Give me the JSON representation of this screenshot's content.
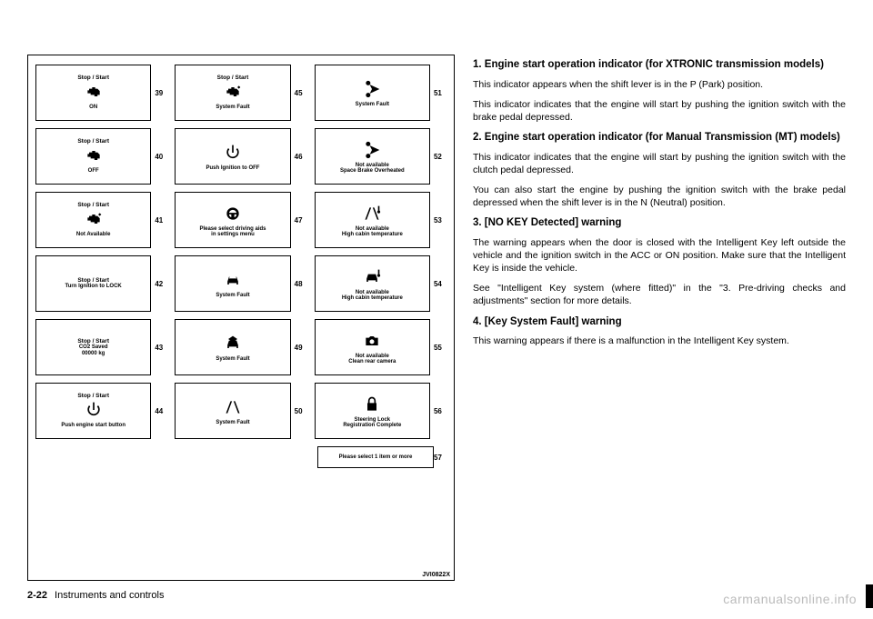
{
  "diagram": {
    "code": "JVI0822X",
    "columns": [
      [
        {
          "num": "39",
          "top": "Stop / Start",
          "icon": "engine",
          "bottom": "ON"
        },
        {
          "num": "40",
          "top": "Stop / Start",
          "icon": "engine",
          "bottom": "OFF"
        },
        {
          "num": "41",
          "top": "Stop / Start",
          "icon": "engine-warn",
          "bottom": "Not Available"
        },
        {
          "num": "42",
          "top": "Stop / Start",
          "icon": "",
          "bottom": "Turn Ignition to LOCK"
        },
        {
          "num": "43",
          "top": "Stop / Start",
          "icon": "",
          "bottom": "CO2 Saved\n00000 kg"
        },
        {
          "num": "44",
          "top": "Stop / Start",
          "icon": "power",
          "bottom": "Push engine start button"
        }
      ],
      [
        {
          "num": "45",
          "top": "Stop / Start",
          "icon": "engine-warn",
          "bottom": "System Fault"
        },
        {
          "num": "46",
          "top": "",
          "icon": "power",
          "bottom": "Push Ignition to OFF"
        },
        {
          "num": "47",
          "top": "",
          "icon": "wheel",
          "bottom": "Please select driving aids\nin settings menu"
        },
        {
          "num": "48",
          "top": "",
          "icon": "car-front",
          "bottom": "System Fault"
        },
        {
          "num": "49",
          "top": "",
          "icon": "car-alert",
          "bottom": "System Fault"
        },
        {
          "num": "50",
          "top": "",
          "icon": "lane",
          "bottom": "System Fault"
        }
      ],
      [
        {
          "num": "51",
          "top": "",
          "icon": "scissors",
          "bottom": "System Fault"
        },
        {
          "num": "52",
          "top": "",
          "icon": "scissors",
          "bottom": "Not available\nSpace Brake Overheated"
        },
        {
          "num": "53",
          "top": "",
          "icon": "lane-temp",
          "bottom": "Not available\nHigh cabin temperature"
        },
        {
          "num": "54",
          "top": "",
          "icon": "car-temp",
          "bottom": "Not available\nHigh cabin temperature"
        },
        {
          "num": "55",
          "top": "",
          "icon": "camera",
          "bottom": "Not available\nClean rear camera"
        },
        {
          "num": "56",
          "top": "",
          "icon": "lock",
          "bottom": "Steering Lock\nRegistration Complete"
        }
      ]
    ],
    "extra": {
      "num": "57",
      "text": "Please select 1 item or more"
    }
  },
  "text": {
    "s1_title": "1. Engine start operation indicator (for XTRONIC transmission models)",
    "s1_p1": "This indicator appears when the shift lever is in the P (Park) position.",
    "s1_p2": "This indicator indicates that the engine will start by pushing the ignition switch with the brake pedal depressed.",
    "s2_title": "2. Engine start operation indicator (for Manual Transmission (MT) models)",
    "s2_p1": "This indicator indicates that the engine will start by pushing the ignition switch with the clutch pedal depressed.",
    "s2_p2": "You can also start the engine by pushing the ignition switch with the brake pedal depressed when the shift lever is in the N (Neutral) position.",
    "s3_title": "3. [NO KEY Detected] warning",
    "s3_p1": "The warning appears when the door is closed with the Intelligent Key left outside the vehicle and the ignition switch in the ACC or ON position. Make sure that the Intelligent Key is inside the vehicle.",
    "s3_p2": "See \"Intelligent Key system (where fitted)\" in the \"3. Pre-driving checks and adjustments\" section for more details.",
    "s4_title": "4. [Key System Fault] warning",
    "s4_p1": "This warning appears if there is a malfunction in the Intelligent Key system."
  },
  "footer": {
    "page": "2-22",
    "section": "Instruments and controls"
  },
  "watermark": "carmanualsonline.info"
}
